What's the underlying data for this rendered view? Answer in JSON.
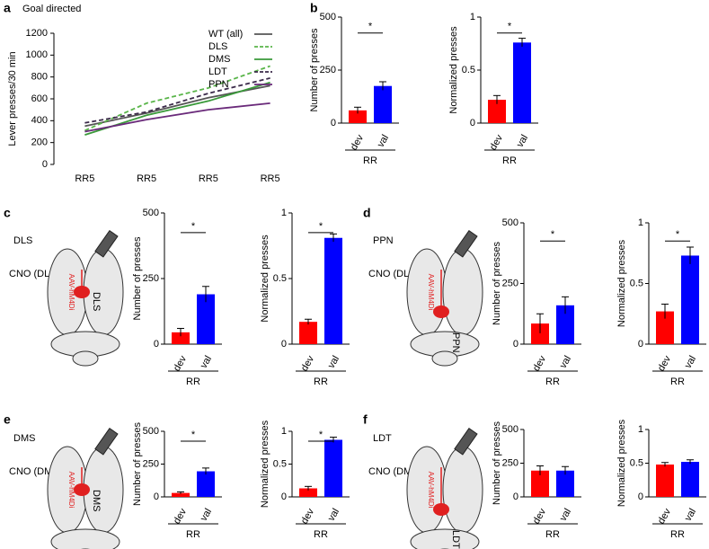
{
  "chart_data": [
    {
      "type": "line",
      "title": "Goal directed",
      "ylabel": "Lever presses/30 min",
      "categories": [
        "RR5",
        "RR5",
        "RR5",
        "RR5"
      ],
      "ylim": [
        0,
        1200
      ],
      "yticks": [
        0,
        200,
        400,
        600,
        800,
        1000,
        1200
      ],
      "series": [
        {
          "name": "WT (all)",
          "color": "#555555",
          "dash": false,
          "values": [
            350,
            470,
            610,
            720
          ]
        },
        {
          "name": "DLS",
          "color": "#5ab54a",
          "dash": true,
          "values": [
            310,
            560,
            700,
            900
          ]
        },
        {
          "name": "DMS",
          "color": "#3a9a3a",
          "dash": false,
          "values": [
            270,
            450,
            580,
            750
          ]
        },
        {
          "name": "LDT",
          "color": "#3b2a4a",
          "dash": true,
          "values": [
            380,
            480,
            650,
            790
          ]
        },
        {
          "name": "PPN",
          "color": "#6a2a7a",
          "dash": false,
          "values": [
            300,
            410,
            500,
            560
          ]
        }
      ]
    },
    {
      "type": "bar",
      "ylabel": "Number of presses",
      "xlabel": "RR",
      "categories": [
        "dev",
        "val"
      ],
      "colors": [
        "#ff0000",
        "#0000ff"
      ],
      "values": [
        60,
        175
      ],
      "errors": [
        15,
        20
      ],
      "ylim": [
        0,
        500
      ],
      "yticks": [
        0,
        250,
        500
      ],
      "annotation": "*"
    },
    {
      "type": "bar",
      "ylabel": "Normalized presses",
      "xlabel": "RR",
      "categories": [
        "dev",
        "val"
      ],
      "colors": [
        "#ff0000",
        "#0000ff"
      ],
      "values": [
        0.22,
        0.76
      ],
      "errors": [
        0.04,
        0.04
      ],
      "ylim": [
        0,
        1
      ],
      "yticks": [
        0,
        0.5,
        1
      ],
      "annotation": "*"
    },
    {
      "type": "bar",
      "ylabel": "Number of presses",
      "xlabel": "RR",
      "categories": [
        "dev",
        "val"
      ],
      "colors": [
        "#ff0000",
        "#0000ff"
      ],
      "values": [
        45,
        190
      ],
      "errors": [
        15,
        30
      ],
      "ylim": [
        0,
        500
      ],
      "yticks": [
        0,
        250,
        500
      ],
      "annotation": "*"
    },
    {
      "type": "bar",
      "ylabel": "Normalized presses",
      "xlabel": "RR",
      "categories": [
        "dev",
        "val"
      ],
      "colors": [
        "#ff0000",
        "#0000ff"
      ],
      "values": [
        0.17,
        0.81
      ],
      "errors": [
        0.02,
        0.03
      ],
      "ylim": [
        0,
        1
      ],
      "yticks": [
        0,
        0.5,
        1
      ],
      "annotation": "*"
    },
    {
      "type": "bar",
      "ylabel": "Number of presses",
      "xlabel": "RR",
      "categories": [
        "dev",
        "val"
      ],
      "colors": [
        "#ff0000",
        "#0000ff"
      ],
      "values": [
        85,
        160
      ],
      "errors": [
        40,
        35
      ],
      "ylim": [
        0,
        500
      ],
      "yticks": [
        0,
        250,
        500
      ],
      "annotation": "*"
    },
    {
      "type": "bar",
      "ylabel": "Normalized presses",
      "xlabel": "RR",
      "categories": [
        "dev",
        "val"
      ],
      "colors": [
        "#ff0000",
        "#0000ff"
      ],
      "values": [
        0.27,
        0.73
      ],
      "errors": [
        0.06,
        0.07
      ],
      "ylim": [
        0,
        1
      ],
      "yticks": [
        0,
        0.5,
        1
      ],
      "annotation": "*"
    },
    {
      "type": "bar",
      "ylabel": "Number of presses",
      "xlabel": "RR",
      "categories": [
        "dev",
        "val"
      ],
      "colors": [
        "#ff0000",
        "#0000ff"
      ],
      "values": [
        30,
        195
      ],
      "errors": [
        8,
        25
      ],
      "ylim": [
        0,
        500
      ],
      "yticks": [
        0,
        250,
        500
      ],
      "annotation": "*"
    },
    {
      "type": "bar",
      "ylabel": "Normalized presses",
      "xlabel": "RR",
      "categories": [
        "dev",
        "val"
      ],
      "colors": [
        "#ff0000",
        "#0000ff"
      ],
      "values": [
        0.13,
        0.87
      ],
      "errors": [
        0.03,
        0.04
      ],
      "ylim": [
        0,
        1
      ],
      "yticks": [
        0,
        0.5,
        1
      ],
      "annotation": "*"
    },
    {
      "type": "bar",
      "ylabel": "Number of presses",
      "xlabel": "RR",
      "categories": [
        "dev",
        "val"
      ],
      "colors": [
        "#ff0000",
        "#0000ff"
      ],
      "values": [
        195,
        195
      ],
      "errors": [
        35,
        30
      ],
      "ylim": [
        0,
        500
      ],
      "yticks": [
        0,
        250,
        500
      ]
    },
    {
      "type": "bar",
      "ylabel": "Normalized presses",
      "xlabel": "RR",
      "categories": [
        "dev",
        "val"
      ],
      "colors": [
        "#ff0000",
        "#0000ff"
      ],
      "values": [
        0.48,
        0.52
      ],
      "errors": [
        0.03,
        0.03
      ],
      "ylim": [
        0,
        1
      ],
      "yticks": [
        0,
        0.5,
        1
      ]
    }
  ],
  "panels": [
    {
      "letter": "a"
    },
    {
      "letter": "b"
    },
    {
      "letter": "c",
      "region": "DLS",
      "treatment": "CNO (DLS)",
      "virus": "AAV-hM4Di",
      "site": "DLS"
    },
    {
      "letter": "d",
      "region": "PPN",
      "treatment": "CNO (DLS)",
      "virus": "AAV-hM4Di",
      "site": "PPN"
    },
    {
      "letter": "e",
      "region": "DMS",
      "treatment": "CNO (DMS)",
      "virus": "AAV-hM4Di",
      "site": "DMS"
    },
    {
      "letter": "f",
      "region": "LDT",
      "treatment": "CNO (DMS)",
      "virus": "AAV-hM4Di",
      "site": "LDT"
    }
  ]
}
